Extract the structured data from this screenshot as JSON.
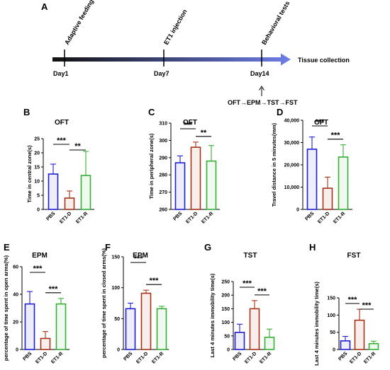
{
  "figure": {
    "panel_A_label": "A",
    "timeline": {
      "milestones": [
        "Day1",
        "Day7",
        "Day14"
      ],
      "events": [
        "Adaptive feeding",
        "ET1 injection",
        "Behavioral tests"
      ],
      "end_label": "Tissue collection",
      "test_sequence": "OFT→EPM→TST→FST"
    },
    "colors": {
      "PBS": "#1f1fd6",
      "ET1-D": "#a83218",
      "ET1-R": "#35b035",
      "timeline_start": "#111111",
      "timeline_end": "#6e7ee8"
    }
  },
  "chart_data": [
    {
      "panel": "B",
      "type": "bar",
      "title": "OFT",
      "ylabel": "Time in central zone(s)",
      "categories": [
        "PBS",
        "ET1-D",
        "ET1-R"
      ],
      "values": [
        12.5,
        4.0,
        12.0
      ],
      "errors": [
        3.5,
        2.5,
        8.5
      ],
      "ylim": [
        0,
        25
      ],
      "yticks": [
        0,
        5,
        10,
        15,
        20,
        25
      ],
      "comparisons": [
        {
          "pair": [
            0,
            1
          ],
          "label": "***"
        },
        {
          "pair": [
            1,
            2
          ],
          "label": "**"
        }
      ]
    },
    {
      "panel": "C",
      "type": "bar",
      "title": "OFT",
      "ylabel": "Time in peripheral zone(s)",
      "categories": [
        "PBS",
        "ET1-D",
        "ET1-R"
      ],
      "values": [
        287,
        296,
        288
      ],
      "errors": [
        4,
        3,
        9
      ],
      "ylim": [
        260,
        310
      ],
      "yticks": [
        260,
        270,
        280,
        290,
        300,
        310
      ],
      "comparisons": [
        {
          "pair": [
            0,
            1
          ],
          "label": "***"
        },
        {
          "pair": [
            1,
            2
          ],
          "label": "**"
        }
      ]
    },
    {
      "panel": "D",
      "type": "bar",
      "title": "OFT",
      "ylabel": "Travel distance in 5 minutes(mm)",
      "categories": [
        "PBS",
        "ET1-D",
        "ET1-R"
      ],
      "values": [
        27000,
        9500,
        23500
      ],
      "errors": [
        5500,
        5000,
        5500
      ],
      "ylim": [
        0,
        40000
      ],
      "yticks": [
        0,
        10000,
        20000,
        30000,
        40000
      ],
      "ytick_labels": [
        "0",
        "10,000",
        "20,000",
        "30,000",
        "40,000"
      ],
      "comparisons": [
        {
          "pair": [
            0,
            1
          ],
          "label": "***"
        },
        {
          "pair": [
            1,
            2
          ],
          "label": "***"
        }
      ]
    },
    {
      "panel": "E",
      "type": "bar",
      "title": "EPM",
      "ylabel": "percentage of time spent in open arms(%)",
      "categories": [
        "PBS",
        "ET1-D",
        "ET1-R"
      ],
      "values": [
        33,
        8,
        33
      ],
      "errors": [
        9,
        5,
        4
      ],
      "ylim": [
        0,
        60
      ],
      "yticks": [
        0,
        20,
        40,
        60
      ],
      "comparisons": [
        {
          "pair": [
            0,
            1
          ],
          "label": "***"
        },
        {
          "pair": [
            1,
            2
          ],
          "label": "***"
        }
      ]
    },
    {
      "panel": "F",
      "type": "bar",
      "title": "EPM",
      "ylabel": "percentage of time spent in closed arms(%)",
      "categories": [
        "PBS",
        "ET1-D",
        "ET1-R"
      ],
      "values": [
        66,
        91,
        66
      ],
      "errors": [
        9,
        5,
        4
      ],
      "ylim": [
        0,
        150
      ],
      "yticks": [
        0,
        50,
        100,
        150
      ],
      "comparisons": [
        {
          "pair": [
            0,
            1
          ],
          "label": "***"
        },
        {
          "pair": [
            1,
            2
          ],
          "label": "***"
        }
      ]
    },
    {
      "panel": "G",
      "type": "bar",
      "title": "TST",
      "ylabel": "Last 4 minutes immobility time(s)",
      "categories": [
        "PBS",
        "ET1-D",
        "ET1-R"
      ],
      "values": [
        63,
        150,
        45
      ],
      "errors": [
        30,
        30,
        30
      ],
      "ylim": [
        0,
        250
      ],
      "yticks": [
        0,
        50,
        100,
        150,
        200,
        250
      ],
      "comparisons": [
        {
          "pair": [
            0,
            1
          ],
          "label": "***"
        },
        {
          "pair": [
            1,
            2
          ],
          "label": "***"
        }
      ]
    },
    {
      "panel": "H",
      "type": "bar",
      "title": "FST",
      "ylabel": "Last 4 minutes immobility time(s)",
      "categories": [
        "PBS",
        "ET1-D",
        "ET1-R"
      ],
      "values": [
        25,
        85,
        17
      ],
      "errors": [
        13,
        32,
        7
      ],
      "ylim": [
        0,
        150
      ],
      "yticks": [
        0,
        50,
        100,
        150
      ],
      "comparisons": [
        {
          "pair": [
            0,
            1
          ],
          "label": "***"
        },
        {
          "pair": [
            1,
            2
          ],
          "label": "***"
        }
      ]
    }
  ]
}
